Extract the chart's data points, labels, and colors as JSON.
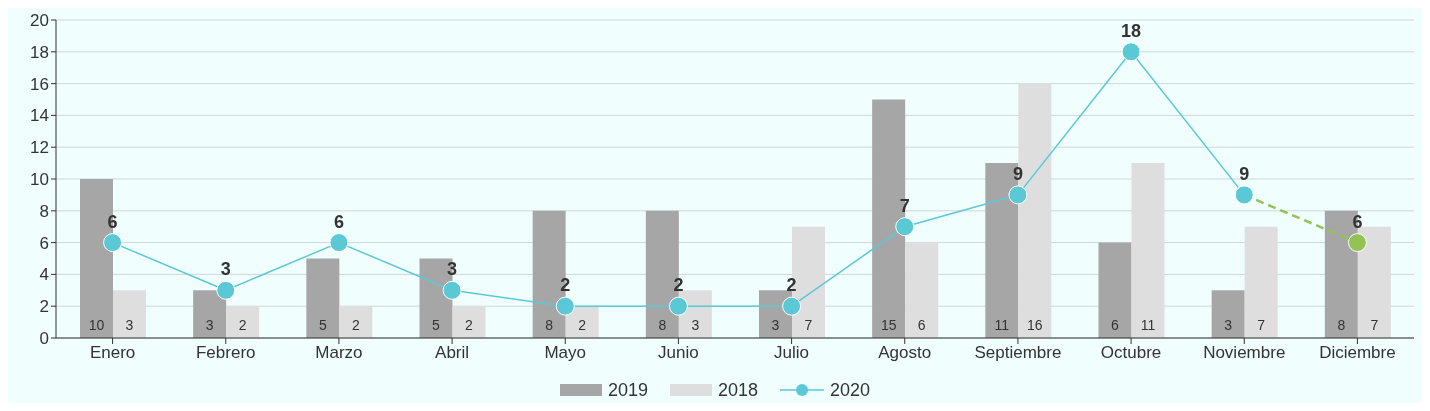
{
  "chart_data": {
    "type": "bar",
    "categories": [
      "Enero",
      "Febrero",
      "Marzo",
      "Abril",
      "Mayo",
      "Junio",
      "Julio",
      "Agosto",
      "Septiembre",
      "Octubre",
      "Noviembre",
      "Diciembre"
    ],
    "series": [
      {
        "name": "2019",
        "color": "#a6a6a6",
        "values": [
          10,
          3,
          5,
          5,
          8,
          8,
          3,
          15,
          11,
          6,
          3,
          8
        ]
      },
      {
        "name": "2018",
        "color": "#dedede",
        "values": [
          3,
          2,
          2,
          2,
          2,
          3,
          7,
          6,
          16,
          11,
          7,
          7
        ]
      },
      {
        "type": "line",
        "color": "#92c353",
        "line_style": "dashed",
        "values": [
          null,
          null,
          null,
          null,
          null,
          null,
          null,
          null,
          null,
          null,
          9,
          6
        ],
        "value_labels": [
          null,
          null,
          null,
          null,
          null,
          null,
          null,
          null,
          null,
          null,
          null,
          "6"
        ]
      },
      {
        "name": "2020",
        "type": "line",
        "color": "#5bc8d6",
        "line_style": "solid",
        "values": [
          6,
          3,
          6,
          3,
          2,
          2,
          2,
          7,
          9,
          18,
          9,
          null
        ]
      }
    ],
    "ylim": [
      0,
      20
    ],
    "yticks": [
      0,
      2,
      4,
      6,
      8,
      10,
      12,
      14,
      16,
      18,
      20
    ],
    "grid": "y",
    "legend": "bottom",
    "marker": "circle",
    "data_labels": true
  }
}
